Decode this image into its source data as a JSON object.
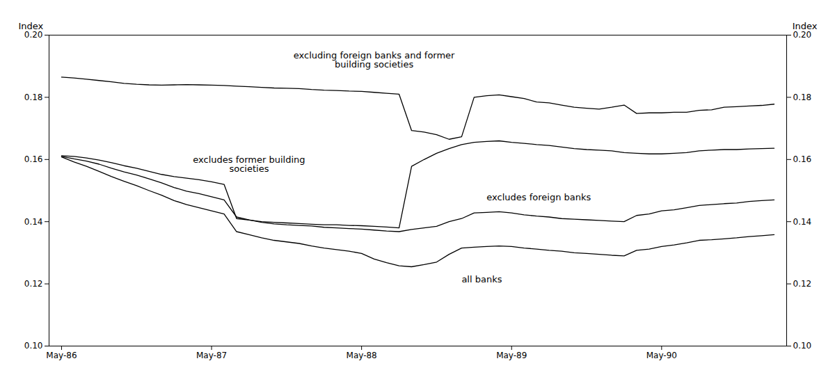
{
  "chart_data": {
    "type": "line",
    "x": [
      0,
      1,
      2,
      3,
      4,
      5,
      6,
      7,
      8,
      9,
      10,
      11,
      12,
      13,
      14,
      15,
      16,
      17,
      18,
      19,
      20,
      21,
      22,
      23,
      24,
      25,
      26,
      27,
      28,
      29,
      30,
      31,
      32,
      33,
      34,
      35,
      36,
      37,
      38,
      39,
      40,
      41,
      42,
      43,
      44,
      45,
      46,
      47,
      48,
      49,
      50,
      51,
      52,
      53,
      54,
      55,
      56,
      57
    ],
    "xlim": [
      -1,
      58
    ],
    "xticks": [
      {
        "value": 0,
        "label": "May-86"
      },
      {
        "value": 12,
        "label": "May-87"
      },
      {
        "value": 24,
        "label": "May-88"
      },
      {
        "value": 36,
        "label": "May-89"
      },
      {
        "value": 48,
        "label": "May-90"
      }
    ],
    "ylabel": "Index",
    "y2label": "Index",
    "ylim": [
      0.1,
      0.2
    ],
    "yticks": [
      {
        "value": 0.1,
        "label": "0.10"
      },
      0.12,
      0.14,
      0.16,
      0.18,
      {
        "value": 0.2,
        "label": "0.20"
      }
    ],
    "y2lim": [
      0.1,
      0.2
    ],
    "y2ticks": [
      {
        "value": 0.1,
        "label": "0.10"
      },
      0.12,
      0.14,
      0.16,
      0.18,
      {
        "value": 0.2,
        "label": "0.20"
      }
    ],
    "grid": false,
    "series": [
      {
        "color": "#000000",
        "values": [
          0.1865,
          0.1862,
          0.1858,
          0.1854,
          0.185,
          0.1845,
          0.1842,
          0.184,
          0.1839,
          0.184,
          0.1841,
          0.184,
          0.1839,
          0.1838,
          0.1836,
          0.1834,
          0.1832,
          0.183,
          0.1829,
          0.1828,
          0.1825,
          0.1823,
          0.1822,
          0.182,
          0.1819,
          0.1816,
          0.1813,
          0.181,
          0.1693,
          0.1688,
          0.168,
          0.1665,
          0.1673,
          0.18,
          0.1805,
          0.1808,
          0.1802,
          0.1796,
          0.1785,
          0.1782,
          0.1775,
          0.1768,
          0.1765,
          0.1762,
          0.1768,
          0.1775,
          0.1748,
          0.175,
          0.175,
          0.1752,
          0.1752,
          0.1758,
          0.176,
          0.1768,
          0.177,
          0.1772,
          0.1774,
          0.1778
        ]
      },
      {
        "color": "#000000",
        "values": [
          0.1612,
          0.161,
          0.1605,
          0.1598,
          0.159,
          0.158,
          0.1572,
          0.1562,
          0.1552,
          0.1545,
          0.154,
          0.1535,
          0.1528,
          0.152,
          0.141,
          0.1405,
          0.14,
          0.1398,
          0.1396,
          0.1394,
          0.1392,
          0.139,
          0.139,
          0.1388,
          0.1387,
          0.1385,
          0.1383,
          0.138,
          0.1578,
          0.16,
          0.162,
          0.1635,
          0.1648,
          0.1655,
          0.1658,
          0.166,
          0.1655,
          0.1652,
          0.1648,
          0.1645,
          0.164,
          0.1635,
          0.1632,
          0.163,
          0.1628,
          0.1622,
          0.162,
          0.1618,
          0.1618,
          0.162,
          0.1622,
          0.1628,
          0.163,
          0.1632,
          0.1632,
          0.1634,
          0.1635,
          0.1636
        ]
      },
      {
        "color": "#000000",
        "values": [
          0.161,
          0.1602,
          0.1595,
          0.1585,
          0.1572,
          0.156,
          0.155,
          0.1538,
          0.1525,
          0.151,
          0.1498,
          0.149,
          0.148,
          0.147,
          0.1415,
          0.1406,
          0.1398,
          0.1393,
          0.139,
          0.1388,
          0.1386,
          0.1382,
          0.138,
          0.1378,
          0.1376,
          0.1373,
          0.137,
          0.1368,
          0.1375,
          0.138,
          0.1385,
          0.14,
          0.141,
          0.1428,
          0.143,
          0.1432,
          0.1428,
          0.1422,
          0.1418,
          0.1415,
          0.141,
          0.1408,
          0.1406,
          0.1404,
          0.1402,
          0.14,
          0.142,
          0.1425,
          0.1435,
          0.1438,
          0.1445,
          0.1452,
          0.1455,
          0.1458,
          0.146,
          0.1465,
          0.1468,
          0.147
        ]
      },
      {
        "color": "#000000",
        "values": [
          0.1608,
          0.1592,
          0.1578,
          0.1562,
          0.1545,
          0.153,
          0.1516,
          0.15,
          0.1485,
          0.1468,
          0.1455,
          0.1445,
          0.1435,
          0.1425,
          0.1368,
          0.1358,
          0.1348,
          0.134,
          0.1335,
          0.133,
          0.1322,
          0.1315,
          0.131,
          0.1305,
          0.1298,
          0.128,
          0.1268,
          0.1258,
          0.1255,
          0.1262,
          0.127,
          0.1295,
          0.1315,
          0.1318,
          0.132,
          0.1322,
          0.132,
          0.1315,
          0.1312,
          0.1308,
          0.1305,
          0.13,
          0.1298,
          0.1295,
          0.1292,
          0.129,
          0.1308,
          0.1312,
          0.132,
          0.1325,
          0.1332,
          0.134,
          0.1342,
          0.1345,
          0.1348,
          0.1352,
          0.1355,
          0.1358
        ]
      }
    ],
    "annotations": [
      {
        "text": "excluding foreign banks and former\nbuilding societies",
        "x": 25,
        "y": 0.1895
      },
      {
        "text": "excludes former building\nsocieties",
        "x": 15,
        "y": 0.156
      },
      {
        "text": "excludes foreign banks",
        "x": 34,
        "y": 0.1468
      },
      {
        "text": "all banks",
        "x": 32,
        "y": 0.1225
      }
    ]
  }
}
